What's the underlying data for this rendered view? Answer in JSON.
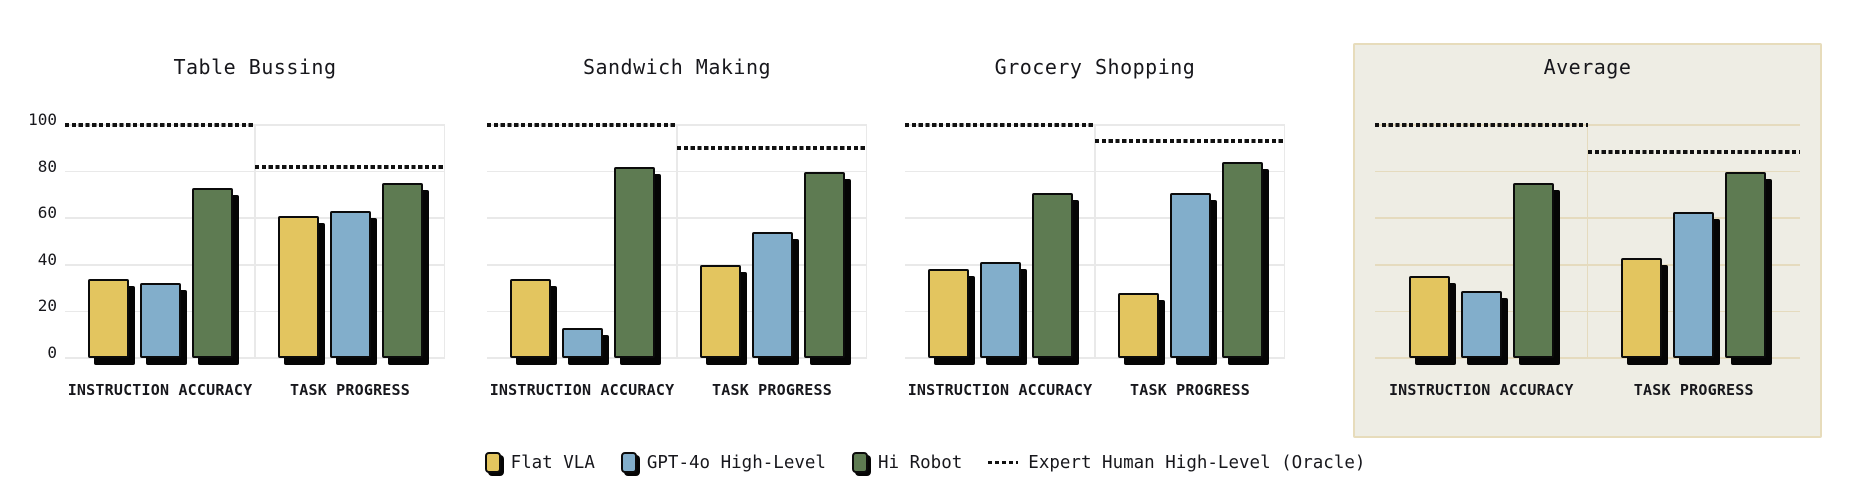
{
  "colors": {
    "series": [
      "#e3c55f",
      "#82aecb",
      "#5e7b52"
    ],
    "oracle_line": "#111111",
    "bar_outline": "#0b0b0b",
    "bar_shadow": "#050505",
    "grid": "#e9e9e9",
    "highlight_bg": "#eeede4",
    "highlight_border": "#e7dcbb",
    "highlight_grid": "#e5dbbe",
    "text": "#17171c"
  },
  "legend": {
    "items": [
      {
        "label": "Flat VLA",
        "type": "swatch",
        "series_index": 0
      },
      {
        "label": "GPT-4o High-Level",
        "type": "swatch",
        "series_index": 1
      },
      {
        "label": "Hi Robot",
        "type": "swatch",
        "series_index": 2
      },
      {
        "label": "Expert Human High-Level (Oracle)",
        "type": "dotted"
      }
    ]
  },
  "chart_data": {
    "type": "bar",
    "series_names": [
      "Flat VLA",
      "GPT-4o High-Level",
      "Hi Robot"
    ],
    "oracle_series_name": "Expert Human High-Level (Oracle)",
    "group_labels": [
      "INSTRUCTION ACCURACY",
      "TASK PROGRESS"
    ],
    "y_ticks": [
      0,
      20,
      40,
      60,
      80,
      100
    ],
    "ylim": [
      0,
      100
    ],
    "grid": true,
    "y_axis_labels_on_first_panel_only": true,
    "legend_position": "bottom",
    "panels": [
      {
        "title": "Table Bussing",
        "highlighted": false,
        "groups": [
          {
            "label": "INSTRUCTION ACCURACY",
            "values": [
              34,
              32,
              73
            ],
            "oracle": 100
          },
          {
            "label": "TASK PROGRESS",
            "values": [
              61,
              63,
              75
            ],
            "oracle": 82
          }
        ]
      },
      {
        "title": "Sandwich Making",
        "highlighted": false,
        "groups": [
          {
            "label": "INSTRUCTION ACCURACY",
            "values": [
              34,
              13,
              82
            ],
            "oracle": 100
          },
          {
            "label": "TASK PROGRESS",
            "values": [
              40,
              54,
              80
            ],
            "oracle": 90
          }
        ]
      },
      {
        "title": "Grocery Shopping",
        "highlighted": false,
        "groups": [
          {
            "label": "INSTRUCTION ACCURACY",
            "values": [
              38,
              41,
              71
            ],
            "oracle": 100
          },
          {
            "label": "TASK PROGRESS",
            "values": [
              28,
              71,
              84
            ],
            "oracle": 93
          }
        ]
      },
      {
        "title": "Average",
        "highlighted": true,
        "groups": [
          {
            "label": "INSTRUCTION ACCURACY",
            "values": [
              35.3,
              28.7,
              75.3
            ],
            "oracle": 100
          },
          {
            "label": "TASK PROGRESS",
            "values": [
              43,
              62.7,
              79.7
            ],
            "oracle": 88.3
          }
        ]
      }
    ]
  }
}
